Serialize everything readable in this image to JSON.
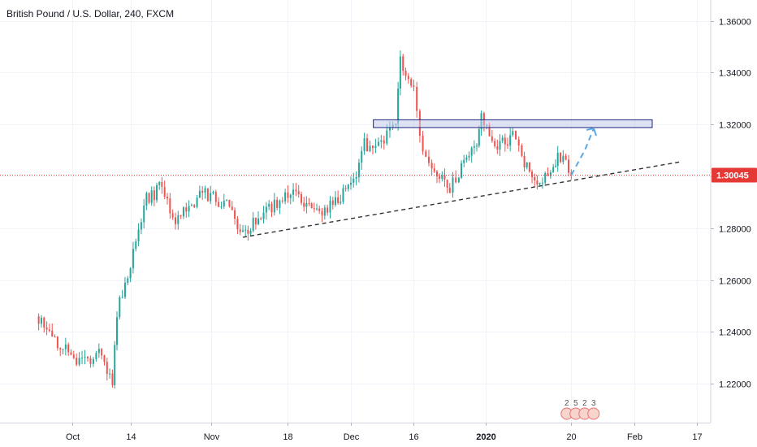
{
  "title": "British Pound / U.S. Dollar, 240, FXCM",
  "chart_data": {
    "type": "candlestick",
    "title": "British Pound / U.S. Dollar, 240, FXCM",
    "symbol": "GBPUSD",
    "timeframe": "240",
    "source": "FXCM",
    "ylim": [
      1.205,
      1.368
    ],
    "y_ticks": [
      "1.36000",
      "1.34000",
      "1.32000",
      "1.30000",
      "1.28000",
      "1.26000",
      "1.24000",
      "1.22000"
    ],
    "x_ticks": [
      {
        "label": "Oct",
        "date": "2019-10-01",
        "bold": false
      },
      {
        "label": "14",
        "date": "2019-10-14",
        "bold": false
      },
      {
        "label": "Nov",
        "date": "2019-11-01",
        "bold": false
      },
      {
        "label": "18",
        "date": "2019-11-18",
        "bold": false
      },
      {
        "label": "Dec",
        "date": "2019-12-02",
        "bold": false
      },
      {
        "label": "16",
        "date": "2019-12-16",
        "bold": false
      },
      {
        "label": "2020",
        "date": "2020-01-01",
        "bold": true
      },
      {
        "label": "20",
        "date": "2020-01-20",
        "bold": false
      },
      {
        "label": "Feb",
        "date": "2020-02-03",
        "bold": false
      },
      {
        "label": "17",
        "date": "2020-02-17",
        "bold": false
      }
    ],
    "last_price": "1.30045",
    "last_price_value": 1.30045,
    "colors": {
      "up": "#26a69a",
      "down": "#ef5350",
      "price_line": "#e53935",
      "zone_fill": "#c5cae9",
      "zone_border": "#1a237e",
      "projection": "#5aa9e6",
      "trendline": "#333333"
    },
    "key_points": [
      {
        "date": "2019-09-23",
        "price": 1.246
      },
      {
        "date": "2019-10-02",
        "price": 1.228
      },
      {
        "date": "2019-10-07",
        "price": 1.231
      },
      {
        "date": "2019-10-10",
        "price": 1.221
      },
      {
        "date": "2019-10-11",
        "price": 1.248
      },
      {
        "date": "2019-10-14",
        "price": 1.265
      },
      {
        "date": "2019-10-17",
        "price": 1.29
      },
      {
        "date": "2019-10-21",
        "price": 1.296
      },
      {
        "date": "2019-10-24",
        "price": 1.283
      },
      {
        "date": "2019-10-30",
        "price": 1.294
      },
      {
        "date": "2019-11-05",
        "price": 1.288
      },
      {
        "date": "2019-11-08",
        "price": 1.278
      },
      {
        "date": "2019-11-12",
        "price": 1.284
      },
      {
        "date": "2019-11-18",
        "price": 1.294
      },
      {
        "date": "2019-11-21",
        "price": 1.29
      },
      {
        "date": "2019-11-25",
        "price": 1.285
      },
      {
        "date": "2019-11-28",
        "price": 1.291
      },
      {
        "date": "2019-12-02",
        "price": 1.295
      },
      {
        "date": "2019-12-05",
        "price": 1.312
      },
      {
        "date": "2019-12-10",
        "price": 1.315
      },
      {
        "date": "2019-12-12",
        "price": 1.319
      },
      {
        "date": "2019-12-13",
        "price": 1.345
      },
      {
        "date": "2019-12-16",
        "price": 1.335
      },
      {
        "date": "2019-12-18",
        "price": 1.308
      },
      {
        "date": "2019-12-20",
        "price": 1.302
      },
      {
        "date": "2019-12-24",
        "price": 1.295
      },
      {
        "date": "2019-12-26",
        "price": 1.302
      },
      {
        "date": "2019-12-30",
        "price": 1.313
      },
      {
        "date": "2019-12-31",
        "price": 1.325
      },
      {
        "date": "2020-01-03",
        "price": 1.31
      },
      {
        "date": "2020-01-07",
        "price": 1.316
      },
      {
        "date": "2020-01-09",
        "price": 1.307
      },
      {
        "date": "2020-01-13",
        "price": 1.298
      },
      {
        "date": "2020-01-16",
        "price": 1.304
      },
      {
        "date": "2020-01-17",
        "price": 1.309
      },
      {
        "date": "2020-01-20",
        "price": 1.30045
      }
    ],
    "annotations": {
      "resistance_zone": {
        "date_start": "2019-12-07",
        "date_end": "2020-02-07",
        "price_low": 1.3188,
        "price_high": 1.3218
      },
      "support_trendline": {
        "start": {
          "date": "2019-11-08",
          "price": 1.2765
        },
        "end": {
          "date": "2020-02-13",
          "price": 1.3055
        }
      },
      "projection": [
        {
          "date": "2020-01-20",
          "price": 1.3005
        },
        {
          "date": "2020-01-23",
          "price": 1.31
        },
        {
          "date": "2020-01-25",
          "price": 1.3185
        }
      ]
    },
    "event_markers": [
      "2",
      "5",
      "2",
      "3"
    ]
  }
}
